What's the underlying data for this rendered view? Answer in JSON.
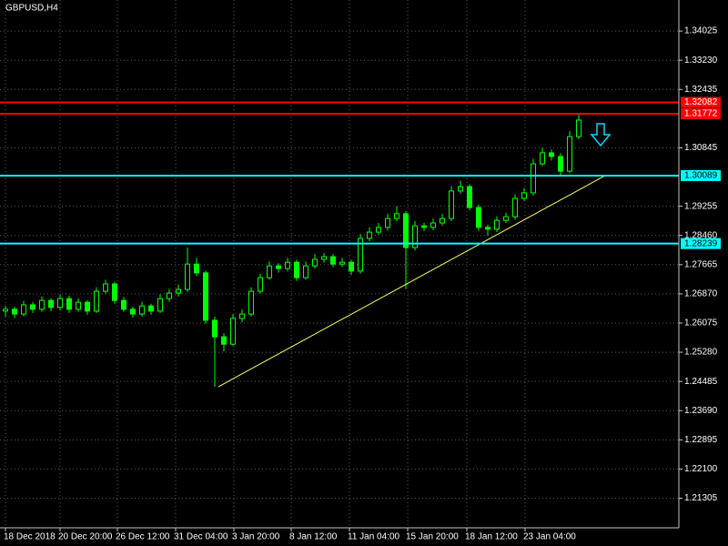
{
  "chart_data": {
    "type": "candlestick",
    "title": "GBPUSD,H4",
    "xlim": [
      -0.6,
      74
    ],
    "ylim": [
      1.205,
      1.3487
    ],
    "xticks": [
      {
        "value": 0,
        "label": "18 Dec 2018"
      },
      {
        "value": 6,
        "label": "20 Dec 20:00"
      },
      {
        "value": 12.3,
        "label": "26 Dec 12:00"
      },
      {
        "value": 18.7,
        "label": "31 Dec 04:00"
      },
      {
        "value": 25.1,
        "label": "3 Jan 20:00"
      },
      {
        "value": 31.4,
        "label": "8 Jan 12:00"
      },
      {
        "value": 37.8,
        "label": "11 Jan 04:00"
      },
      {
        "value": 44.2,
        "label": "15 Jan 20:00"
      },
      {
        "value": 50.7,
        "label": "18 Jan 12:00"
      },
      {
        "value": 57.1,
        "label": "23 Jan 04:00"
      }
    ],
    "yticks": [
      1.34025,
      {
        "value": 1.3323,
        "label": "1.33230"
      },
      1.32435,
      1.30845,
      1.29255,
      {
        "value": 1.2846,
        "label": "1.28460"
      },
      1.27665,
      {
        "value": 1.2687,
        "label": "1.26870"
      },
      1.26075,
      {
        "value": 1.2528,
        "label": "1.25280"
      },
      1.24485,
      {
        "value": 1.2369,
        "label": "1.23690"
      },
      1.22895,
      {
        "value": 1.221,
        "label": "1.22100"
      },
      1.21305
    ],
    "grid": true,
    "color": "#00ff00",
    "open": [
      1.264,
      1.2645,
      1.2632,
      1.2657,
      1.2645,
      1.2669,
      1.265,
      1.2674,
      1.2645,
      1.2664,
      1.264,
      1.2694,
      1.2714,
      1.2669,
      1.2645,
      1.2632,
      1.2654,
      1.264,
      1.2674,
      1.2689,
      1.2699,
      1.2768,
      1.2744,
      1.2615,
      1.257,
      1.255,
      1.262,
      1.2632,
      1.2694,
      1.2731,
      1.2763,
      1.2756,
      1.2773,
      1.2731,
      1.2763,
      1.2781,
      1.2788,
      1.2768,
      1.2773,
      1.2749,
      1.2838,
      1.2855,
      1.2868,
      1.2892,
      1.2905,
      1.2813,
      1.2872,
      1.2868,
      1.288,
      1.2892,
      1.2967,
      1.2979,
      1.2922,
      1.2868,
      1.2863,
      1.2887,
      1.2897,
      1.2947,
      1.2962,
      1.3041,
      1.3071,
      1.3061,
      1.3021,
      1.3115
    ],
    "high": [
      1.2655,
      1.2652,
      1.2668,
      1.2665,
      1.268,
      1.2675,
      1.2686,
      1.2682,
      1.2675,
      1.267,
      1.2705,
      1.2725,
      1.272,
      1.2678,
      1.2652,
      1.2665,
      1.266,
      1.2686,
      1.27,
      1.2712,
      1.2813,
      1.2785,
      1.275,
      1.2625,
      1.258,
      1.2632,
      1.2645,
      1.2705,
      1.2742,
      1.2775,
      1.277,
      1.2785,
      1.278,
      1.2775,
      1.2795,
      1.2798,
      1.2795,
      1.2785,
      1.278,
      1.285,
      1.2868,
      1.288,
      1.2905,
      1.2925,
      1.2912,
      1.2885,
      1.288,
      1.2892,
      1.2905,
      1.298,
      1.2995,
      1.2985,
      1.293,
      1.2875,
      1.2898,
      1.2908,
      1.2958,
      1.2975,
      1.3055,
      1.3085,
      1.308,
      1.307,
      1.313,
      1.3175
    ],
    "low": [
      1.2625,
      1.262,
      1.2625,
      1.2635,
      1.2638,
      1.264,
      1.2642,
      1.2635,
      1.2638,
      1.263,
      1.2635,
      1.2688,
      1.266,
      1.2638,
      1.2622,
      1.2625,
      1.263,
      1.2635,
      1.2665,
      1.268,
      1.2692,
      1.2735,
      1.2605,
      1.2434,
      1.253,
      1.2545,
      1.261,
      1.2625,
      1.2688,
      1.2725,
      1.2745,
      1.2748,
      1.2722,
      1.2725,
      1.2755,
      1.2772,
      1.276,
      1.276,
      1.2738,
      1.2742,
      1.283,
      1.2848,
      1.286,
      1.2885,
      1.27,
      1.2805,
      1.2858,
      1.286,
      1.2872,
      1.2885,
      1.296,
      1.2915,
      1.2858,
      1.2845,
      1.2855,
      1.288,
      1.289,
      1.294,
      1.2955,
      1.3035,
      1.305,
      1.3008,
      1.3015,
      1.3108
    ],
    "close": [
      1.2645,
      1.2632,
      1.2657,
      1.2645,
      1.2669,
      1.265,
      1.2674,
      1.2645,
      1.2664,
      1.264,
      1.2694,
      1.2714,
      1.2669,
      1.2645,
      1.2632,
      1.2654,
      1.264,
      1.2674,
      1.2689,
      1.2699,
      1.2768,
      1.2744,
      1.2615,
      1.257,
      1.255,
      1.262,
      1.2632,
      1.2694,
      1.2731,
      1.2763,
      1.2756,
      1.2773,
      1.2731,
      1.2763,
      1.2781,
      1.2788,
      1.2768,
      1.2773,
      1.2749,
      1.2838,
      1.2855,
      1.2868,
      1.2892,
      1.2905,
      1.2813,
      1.2872,
      1.2868,
      1.288,
      1.2892,
      1.2967,
      1.2979,
      1.2922,
      1.2868,
      1.2863,
      1.2887,
      1.2897,
      1.2947,
      1.2962,
      1.3041,
      1.3071,
      1.3061,
      1.3021,
      1.3115,
      1.316
    ],
    "levels": [
      {
        "value": 1.32082,
        "color": "#ff0000"
      },
      {
        "value": 1.31772,
        "color": "#ff0000"
      },
      {
        "value": 1.30089,
        "color": "#00ffff"
      },
      {
        "value": 1.28239,
        "color": "#00ffff"
      }
    ],
    "trendline": {
      "x": [
        23.4,
        65.9
      ],
      "values": [
        1.2434,
        1.3009
      ],
      "color": "#ffff66"
    }
  }
}
